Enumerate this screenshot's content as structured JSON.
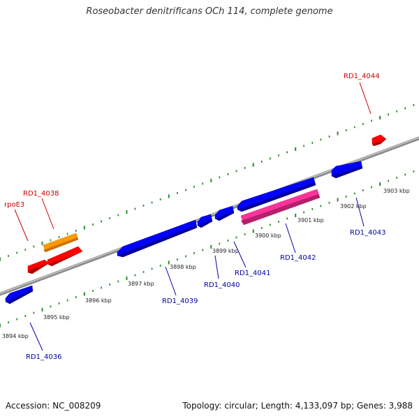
{
  "title": "Roseobacter denitrificans OCh 114, complete genome",
  "footer": {
    "accession": "Accession: NC_008209",
    "summary": "Topology: circular; Length: 4,133,097 bp; Genes: 3,988"
  },
  "colors": {
    "forward_gene": "#ff0000",
    "reverse_gene": "#0000ff",
    "orange_gene": "#ff9900",
    "pink_gene": "#ff3399",
    "tick": "#2e8b2e",
    "backbone": "#888888",
    "forward_label": "#cc0000",
    "reverse_label": "#0000aa"
  },
  "scale_labels": [
    "3894 kbp",
    "3895 kbp",
    "3896 kbp",
    "3897 kbp",
    "3898 kbp",
    "3899 kbp",
    "3900 kbp",
    "3901 kbp",
    "3902 kbp",
    "3903 kbp"
  ],
  "gene_labels": {
    "forward": [
      "rpoE3",
      "RD1_4038",
      "RD1_4044"
    ],
    "reverse": [
      "RD1_4036",
      "RD1_4039",
      "RD1_4040",
      "RD1_4041",
      "RD1_4042",
      "RD1_4043"
    ]
  }
}
